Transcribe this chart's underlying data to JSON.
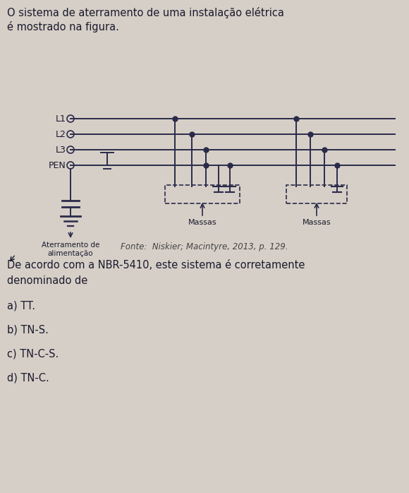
{
  "bg_color": "#d6cfc7",
  "text_color": "#1a1a2e",
  "line_color": "#2a2a4a",
  "title_line1": "O sistema de aterramento de uma instalação elétrica",
  "title_line2": "é mostrado na figura.",
  "fonte": "Fonte:  Niskier; Macintyre, 2013, p. 129.",
  "question": "De acordo com a NBR-5410, este sistema é corretamente\ndenominado de",
  "options": [
    "a) TT.",
    "b) TN-S.",
    "c) TN-C-S.",
    "d) TN-C."
  ],
  "labels": [
    "L1",
    "L2",
    "L3",
    "PEN"
  ],
  "label_aterre": "Aterramento de\nalimentação",
  "label_massas": "Massas",
  "figsize": [
    5.8,
    6.98
  ],
  "dpi": 100
}
